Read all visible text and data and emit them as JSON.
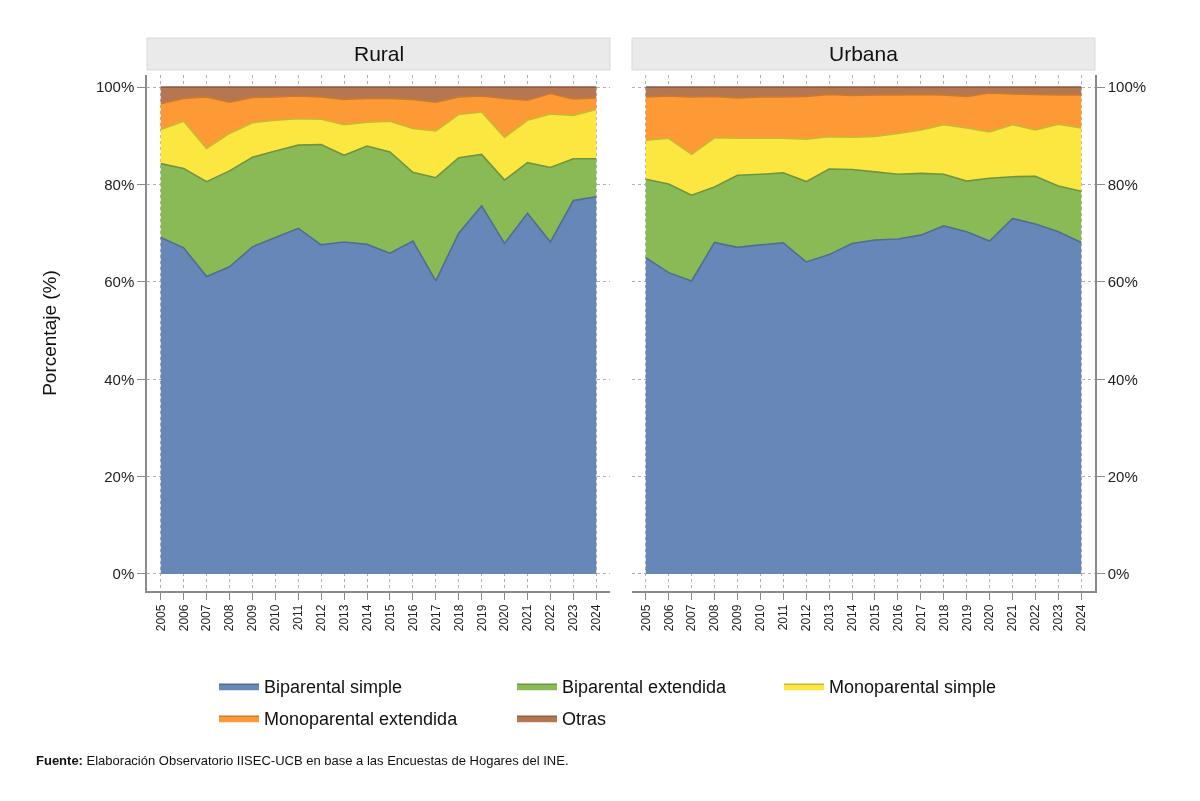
{
  "chart_data": [
    {
      "type": "area",
      "title": "Rural",
      "ylabel": "Porcentaje (%)",
      "stacked": true,
      "grid": true,
      "legend": "bottom",
      "categories": [
        "2005",
        "2006",
        "2007",
        "2008",
        "2009",
        "2010",
        "2011",
        "2012",
        "2013",
        "2014",
        "2015",
        "2016",
        "2017",
        "2018",
        "2019",
        "2020",
        "2021",
        "2022",
        "2023",
        "2024"
      ],
      "ylim": [
        -3.5,
        102.5
      ],
      "yticks": [
        {
          "value": 0,
          "label": "0%"
        },
        {
          "value": 20,
          "label": "20%"
        },
        {
          "value": 40,
          "label": "40%"
        },
        {
          "value": 60,
          "label": "60%"
        },
        {
          "value": 80,
          "label": "80%"
        },
        {
          "value": 100,
          "label": "100%"
        }
      ],
      "series": [
        {
          "name": "Biparental simple",
          "color": "#6787b8",
          "values": [
            69.1,
            67.0,
            61.1,
            63.1,
            67.2,
            69.1,
            71.0,
            67.6,
            68.2,
            67.7,
            65.9,
            68.4,
            60.2,
            70.0,
            75.6,
            67.9,
            74.1,
            68.2,
            76.7,
            77.5
          ]
        },
        {
          "name": "Biparental extendida",
          "color": "#8aba56",
          "values": [
            15.2,
            16.3,
            19.5,
            19.7,
            18.4,
            17.8,
            17.1,
            20.6,
            17.8,
            20.2,
            20.8,
            14.1,
            21.2,
            15.5,
            10.6,
            13.0,
            10.4,
            15.3,
            8.6,
            7.8
          ]
        },
        {
          "name": "Monoparental simple",
          "color": "#fce640",
          "values": [
            7.0,
            9.7,
            6.8,
            7.7,
            7.1,
            6.3,
            5.4,
            5.2,
            6.3,
            4.9,
            6.3,
            9.0,
            9.6,
            8.9,
            8.7,
            8.8,
            8.7,
            11.0,
            8.9,
            10.1
          ]
        },
        {
          "name": "Monoparental extendida",
          "color": "#fd9a36",
          "values": [
            5.3,
            4.7,
            10.6,
            6.4,
            5.2,
            4.8,
            4.7,
            4.6,
            5.2,
            4.9,
            4.7,
            6.0,
            5.9,
            3.6,
            3.3,
            8.0,
            4.1,
            4.2,
            3.4,
            2.4
          ]
        },
        {
          "name": "Otras",
          "color": "#b57652",
          "values": [
            3.4,
            2.3,
            2.0,
            3.1,
            2.1,
            2.0,
            1.8,
            2.0,
            2.5,
            2.3,
            2.3,
            2.5,
            3.1,
            2.0,
            1.8,
            2.3,
            2.7,
            1.3,
            2.4,
            2.2
          ]
        }
      ],
      "annotations": [
        "Fuente: Elaboración Observatorio IISEC-UCB en base a las Encuestas de Hogares del INE."
      ]
    },
    {
      "type": "area",
      "title": "Urbana",
      "stacked": true,
      "grid": true,
      "categories": [
        "2005",
        "2006",
        "2007",
        "2008",
        "2009",
        "2010",
        "2011",
        "2012",
        "2013",
        "2014",
        "2015",
        "2016",
        "2017",
        "2018",
        "2019",
        "2020",
        "2021",
        "2022",
        "2023",
        "2024"
      ],
      "ylim": [
        -3.5,
        102.5
      ],
      "yticks": [
        {
          "value": 0,
          "label": "0%"
        },
        {
          "value": 20,
          "label": "20%"
        },
        {
          "value": 40,
          "label": "40%"
        },
        {
          "value": 60,
          "label": "60%"
        },
        {
          "value": 80,
          "label": "80%"
        },
        {
          "value": 100,
          "label": "100%"
        }
      ],
      "series": [
        {
          "name": "Biparental simple",
          "color": "#6787b8",
          "values": [
            65.0,
            61.9,
            60.2,
            68.1,
            67.1,
            67.6,
            68.0,
            64.1,
            65.6,
            67.9,
            68.6,
            68.8,
            69.6,
            71.5,
            70.3,
            68.4,
            73.0,
            71.9,
            70.3,
            68.1
          ]
        },
        {
          "name": "Biparental extendida",
          "color": "#8aba56",
          "values": [
            16.1,
            18.2,
            17.6,
            11.4,
            14.8,
            14.5,
            14.4,
            16.5,
            17.6,
            15.2,
            14.0,
            13.3,
            12.7,
            10.6,
            10.4,
            12.9,
            8.6,
            9.8,
            9.4,
            10.5
          ]
        },
        {
          "name": "Monoparental simple",
          "color": "#fce640",
          "values": [
            8.0,
            9.4,
            8.4,
            10.1,
            7.6,
            7.4,
            7.1,
            8.7,
            6.6,
            6.6,
            7.3,
            8.4,
            8.9,
            10.2,
            10.9,
            9.5,
            10.7,
            9.5,
            12.7,
            13.0
          ]
        },
        {
          "name": "Monoparental extendida",
          "color": "#fd9a36",
          "values": [
            8.9,
            8.7,
            11.8,
            8.5,
            8.3,
            8.5,
            8.5,
            8.8,
            8.7,
            8.6,
            8.5,
            7.9,
            7.3,
            6.1,
            6.5,
            8.0,
            6.3,
            7.3,
            6.0,
            6.8
          ]
        },
        {
          "name": "Otras",
          "color": "#b57652",
          "values": [
            2.0,
            1.8,
            2.0,
            1.9,
            2.2,
            2.0,
            2.0,
            1.9,
            1.5,
            1.7,
            1.6,
            1.6,
            1.5,
            1.6,
            1.9,
            1.2,
            1.4,
            1.5,
            1.6,
            1.6
          ]
        }
      ]
    }
  ]
}
